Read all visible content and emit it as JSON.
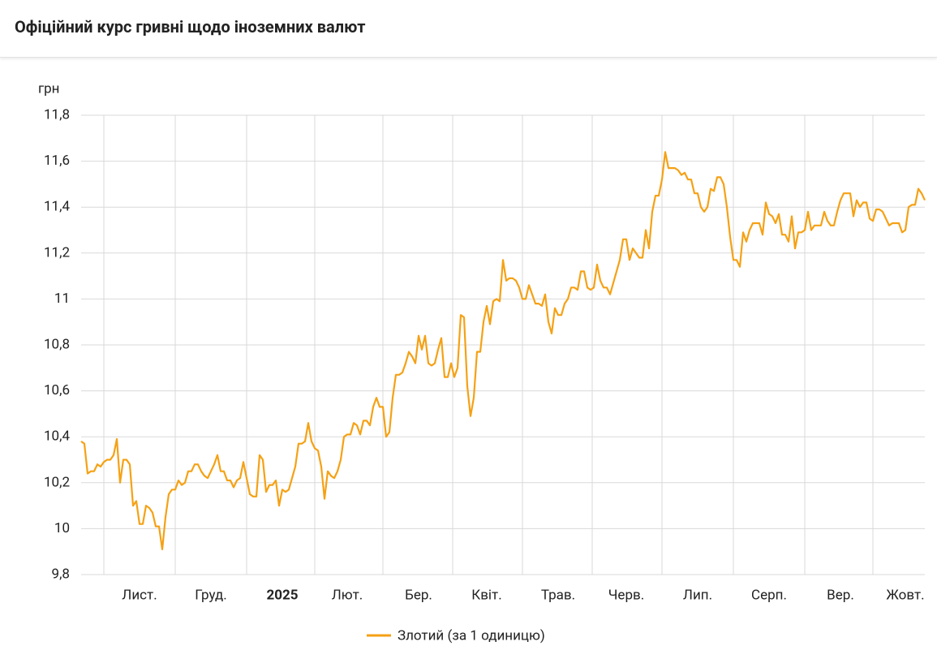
{
  "chart_data": {
    "type": "line",
    "title": "Офіційний курс гривні щодо іноземних валют",
    "ylabel": "грн",
    "ylim": [
      9.8,
      11.8
    ],
    "yticks": [
      {
        "value": 9.8,
        "label": "9,8"
      },
      10,
      {
        "value": 10.2,
        "label": "10,2"
      },
      {
        "value": 10.4,
        "label": "10,4"
      },
      {
        "value": 10.6,
        "label": "10,6"
      },
      {
        "value": 10.8,
        "label": "10,8"
      },
      11,
      {
        "value": 11.2,
        "label": "11,2"
      },
      {
        "value": 11.4,
        "label": "11,4"
      },
      {
        "value": 11.6,
        "label": "11,6"
      },
      {
        "value": 11.8,
        "label": "11,8"
      }
    ],
    "grid": true,
    "legend": "bottom",
    "categories": [
      null,
      null,
      null,
      null,
      null,
      null,
      null,
      null,
      null,
      null,
      null,
      null,
      null,
      null,
      null,
      null,
      null,
      null,
      "Лист.",
      null,
      null,
      null,
      null,
      null,
      null,
      null,
      null,
      null,
      null,
      null,
      null,
      null,
      null,
      null,
      null,
      null,
      null,
      null,
      null,
      null,
      "Груд.",
      null,
      null,
      null,
      null,
      null,
      null,
      null,
      null,
      null,
      null,
      null,
      null,
      null,
      null,
      null,
      null,
      null,
      null,
      null,
      null,
      null,
      "2025",
      null,
      null,
      null,
      null,
      null,
      null,
      null,
      null,
      null,
      null,
      null,
      null,
      null,
      null,
      null,
      null,
      null,
      null,
      null,
      "Лют.",
      null,
      null,
      null,
      null,
      null,
      null,
      null,
      null,
      null,
      null,
      null,
      null,
      null,
      null,
      null,
      null,
      null,
      null,
      null,
      null,
      null,
      "Бер.",
      null,
      null,
      null,
      null,
      null,
      null,
      null,
      null,
      null,
      null,
      null,
      null,
      null,
      null,
      null,
      null,
      null,
      null,
      null,
      null,
      "Квіт.",
      null,
      null,
      null,
      null,
      null,
      null,
      null,
      null,
      null,
      null,
      null,
      null,
      null,
      null,
      null,
      null,
      null,
      null,
      null,
      null,
      null,
      "Трав.",
      null,
      null,
      null,
      null,
      null,
      null,
      null,
      null,
      null,
      null,
      null,
      null,
      null,
      null,
      null,
      null,
      null,
      null,
      null,
      null,
      "Черв.",
      null,
      null,
      null,
      null,
      null,
      null,
      null,
      null,
      null,
      null,
      null,
      null,
      null,
      null,
      null,
      null,
      null,
      null,
      null,
      null,
      null,
      "Лип.",
      null,
      null,
      null,
      null,
      null,
      null,
      null,
      null,
      null,
      null,
      null,
      null,
      null,
      null,
      null,
      null,
      null,
      null,
      null,
      null,
      null,
      "Серп.",
      null,
      null,
      null,
      null,
      null,
      null,
      null,
      null,
      null,
      null,
      null,
      null,
      null,
      null,
      null,
      null,
      null,
      null,
      null,
      null,
      null,
      "Вер.",
      null,
      null,
      null,
      null,
      null,
      null,
      null,
      null,
      null,
      null,
      null,
      null,
      null,
      null,
      null,
      null,
      null,
      null,
      null,
      "Жовт.",
      null,
      null,
      null,
      null,
      null,
      null
    ],
    "series": [
      {
        "name": "Злотий (за 1 одиницю)",
        "color": "#f5a114",
        "values": [
          10.38,
          10.37,
          10.24,
          10.25,
          10.25,
          10.28,
          10.27,
          10.29,
          10.3,
          10.3,
          10.32,
          10.39,
          10.2,
          10.3,
          10.3,
          10.28,
          10.1,
          10.12,
          10.02,
          10.02,
          10.1,
          10.09,
          10.07,
          10.01,
          10.01,
          9.91,
          10.05,
          10.15,
          10.17,
          10.17,
          10.21,
          10.19,
          10.2,
          10.25,
          10.25,
          10.28,
          10.28,
          10.25,
          10.23,
          10.22,
          10.25,
          10.28,
          10.32,
          10.25,
          10.25,
          10.21,
          10.21,
          10.18,
          10.21,
          10.22,
          10.29,
          10.22,
          10.15,
          10.14,
          10.14,
          10.32,
          10.3,
          10.16,
          10.19,
          10.19,
          10.21,
          10.1,
          10.17,
          10.16,
          10.17,
          10.22,
          10.27,
          10.37,
          10.37,
          10.38,
          10.46,
          10.38,
          10.35,
          10.34,
          10.27,
          10.13,
          10.25,
          10.23,
          10.22,
          10.25,
          10.3,
          10.4,
          10.41,
          10.41,
          10.46,
          10.45,
          10.41,
          10.47,
          10.47,
          10.45,
          10.53,
          10.57,
          10.53,
          10.53,
          10.4,
          10.42,
          10.57,
          10.67,
          10.67,
          10.68,
          10.72,
          10.77,
          10.75,
          10.72,
          10.84,
          10.78,
          10.84,
          10.72,
          10.71,
          10.72,
          10.78,
          10.83,
          10.66,
          10.66,
          10.72,
          10.66,
          10.7,
          10.93,
          10.92,
          10.62,
          10.49,
          10.57,
          10.77,
          10.77,
          10.9,
          10.97,
          10.89,
          10.99,
          11.0,
          10.99,
          11.17,
          11.08,
          11.09,
          11.09,
          11.08,
          11.05,
          11.0,
          11.0,
          11.06,
          11.02,
          10.98,
          10.98,
          10.97,
          11.02,
          10.9,
          10.85,
          10.96,
          10.93,
          10.93,
          10.98,
          11.0,
          11.05,
          11.05,
          11.04,
          11.12,
          11.12,
          11.05,
          11.04,
          11.05,
          11.15,
          11.08,
          11.05,
          11.05,
          11.02,
          11.07,
          11.12,
          11.17,
          11.26,
          11.26,
          11.17,
          11.22,
          11.2,
          11.18,
          11.18,
          11.3,
          11.22,
          11.38,
          11.45,
          11.45,
          11.52,
          11.64,
          11.57,
          11.57,
          11.57,
          11.56,
          11.54,
          11.55,
          11.52,
          11.52,
          11.46,
          11.46,
          11.4,
          11.38,
          11.4,
          11.48,
          11.47,
          11.53,
          11.53,
          11.5,
          11.4,
          11.27,
          11.17,
          11.17,
          11.14,
          11.29,
          11.25,
          11.3,
          11.33,
          11.33,
          11.33,
          11.28,
          11.42,
          11.37,
          11.36,
          11.33,
          11.37,
          11.28,
          11.28,
          11.25,
          11.36,
          11.22,
          11.29,
          11.29,
          11.3,
          11.38,
          11.3,
          11.32,
          11.32,
          11.32,
          11.38,
          11.34,
          11.32,
          11.32,
          11.38,
          11.43,
          11.46,
          11.46,
          11.46,
          11.36,
          11.43,
          11.4,
          11.42,
          11.42,
          11.35,
          11.34,
          11.39,
          11.39,
          11.38,
          11.35,
          11.32,
          11.33,
          11.33,
          11.33,
          11.29,
          11.3,
          11.4,
          11.41,
          11.41,
          11.48,
          11.46,
          11.43
        ]
      }
    ]
  }
}
